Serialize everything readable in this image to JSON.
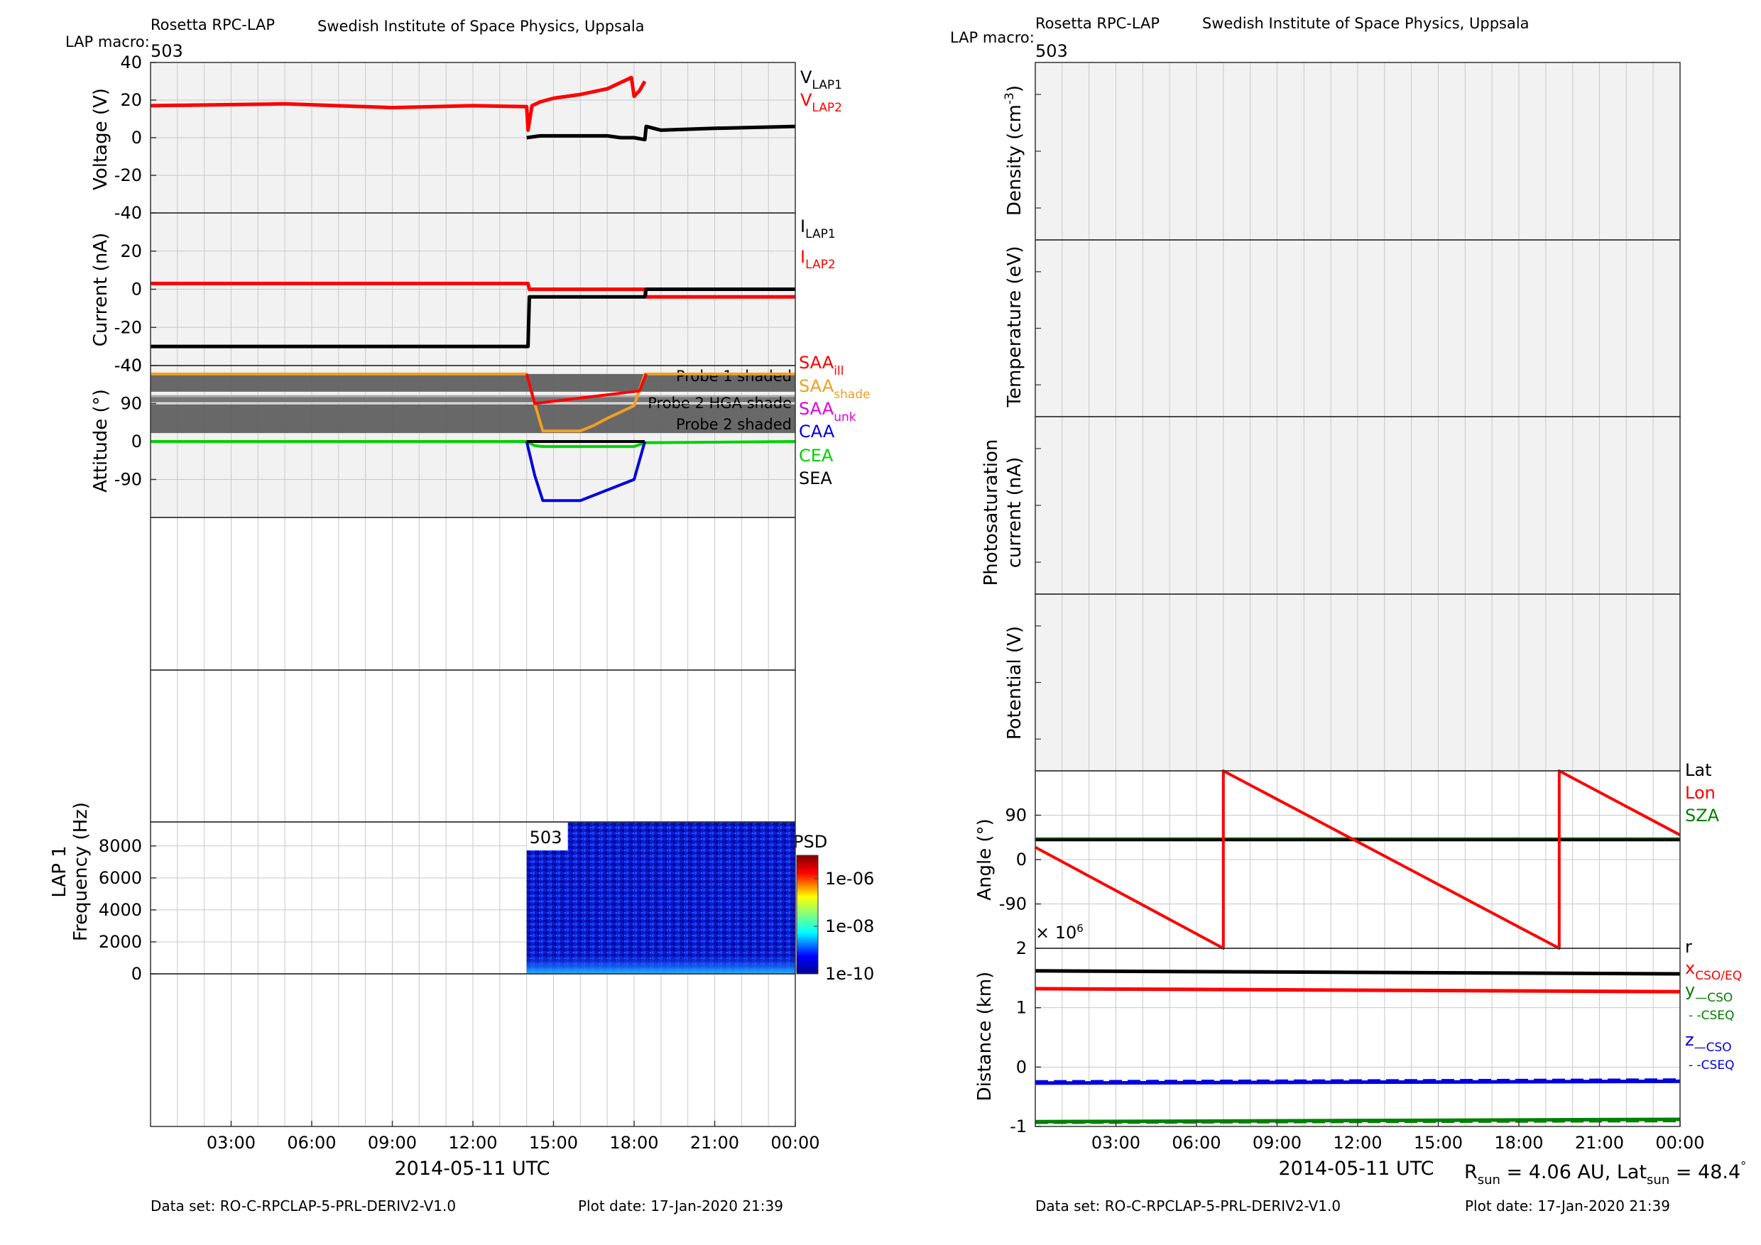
{
  "header": {
    "instrument": "Rosetta RPC-LAP",
    "institute": "Swedish Institute of Space Physics, Uppsala",
    "macro_label": "LAP macro:",
    "macro_value": "503"
  },
  "footer": {
    "dataset": "Data set: RO-C-RPCLAP-5-PRL-DERIV2-V1.0",
    "plot_date": "Plot date: 17-Jan-2020 21:39"
  },
  "x_axis": {
    "label": "2014-05-11 UTC",
    "ticks": [
      "03:00",
      "06:00",
      "09:00",
      "12:00",
      "15:00",
      "18:00",
      "21:00",
      "00:00"
    ],
    "range_hours": [
      0,
      24
    ]
  },
  "colors": {
    "red": "#ff0000",
    "black": "#000000",
    "orange": "#f0a020",
    "magenta": "#e000e0",
    "blue": "#0000e0",
    "green": "#00d000",
    "darkgreen": "#008000",
    "panel_bg": "#f2f2f2",
    "grid": "#c8c8c8"
  },
  "left": {
    "voltage": {
      "ylabel": "Voltage (V)",
      "yticks": [
        "40",
        "20",
        "0",
        "-20",
        "-40"
      ],
      "ylim": [
        -40,
        40
      ],
      "legend": [
        {
          "main": "V",
          "sub": "LAP1",
          "color": "#000000"
        },
        {
          "main": "V",
          "sub": "LAP2",
          "color": "#ff0000"
        }
      ]
    },
    "current": {
      "ylabel": "Current (nA)",
      "yticks": [
        "20",
        "0",
        "-20",
        "-40"
      ],
      "ylim": [
        -40,
        40
      ],
      "legend": [
        {
          "main": "I",
          "sub": "LAP1",
          "color": "#000000"
        },
        {
          "main": "I",
          "sub": "LAP2",
          "color": "#ff0000"
        }
      ]
    },
    "attitude": {
      "ylabel": "Attitude (°)",
      "yticks": [
        "90",
        "0",
        "-90"
      ],
      "ylim": [
        -180,
        180
      ],
      "shade_labels": [
        "Probe 1 shaded",
        "Probe 2 HGA shade",
        "Probe 2 shaded"
      ],
      "legend": [
        {
          "main": "SAA",
          "sub": "ill",
          "color": "#ff0000"
        },
        {
          "main": "SAA",
          "sub": "shade",
          "color": "#f0a020"
        },
        {
          "main": "SAA",
          "sub": "unk",
          "color": "#e000e0"
        },
        {
          "main": "CAA",
          "sub": "",
          "color": "#0000e0"
        },
        {
          "main": "CEA",
          "sub": "",
          "color": "#00d000"
        },
        {
          "main": "SEA",
          "sub": "",
          "color": "#000000"
        }
      ]
    },
    "spectrogram": {
      "ylabel1": "LAP 1",
      "ylabel2": "Frequency (Hz)",
      "yticks": [
        "8000",
        "6000",
        "4000",
        "2000",
        "0"
      ],
      "ylim": [
        0,
        9500
      ],
      "macro_box": "503",
      "colorbar_title": "PSD",
      "colorbar_ticks": [
        "1e-06",
        "1e-08",
        "1e-10"
      ]
    }
  },
  "right": {
    "density": {
      "ylabel": "Density (cm",
      "ylabel_sup": "-3",
      "ylabel_end": ")"
    },
    "temperature": {
      "ylabel": "Temperature (eV)"
    },
    "photosat": {
      "ylabel1": "Photosaturation",
      "ylabel2": "current (nA)"
    },
    "potential": {
      "ylabel": "Potential (V)"
    },
    "angle": {
      "ylabel": "Angle (°)",
      "yticks": [
        "90",
        "0",
        "-90"
      ],
      "ylim": [
        -180,
        180
      ],
      "legend": [
        {
          "main": "Lat",
          "color": "#000000"
        },
        {
          "main": "Lon",
          "color": "#ff0000"
        },
        {
          "main": "SZA",
          "color": "#008000"
        }
      ]
    },
    "distance": {
      "ylabel": "Distance (km)",
      "exponent_label": "× 10",
      "exponent_sup": "6",
      "yticks": [
        "2",
        "1",
        "0",
        "-1"
      ],
      "ylim": [
        -1,
        2
      ],
      "legend": [
        {
          "main": "r",
          "sub": "",
          "color": "#000000"
        },
        {
          "main": "x",
          "sub": "CSO/EQ",
          "color": "#ff0000"
        },
        {
          "main": "y",
          "sub": "—CSO",
          "color": "#008000"
        },
        {
          "main": "",
          "sub": "- -CSEQ",
          "color": "#008000"
        },
        {
          "main": "z",
          "sub": "—CSO",
          "color": "#0000e0"
        },
        {
          "main": "",
          "sub": "- -CSEQ",
          "color": "#0000e0"
        }
      ]
    },
    "solar_info": {
      "r_label": "R",
      "r_sub": "sun",
      "r_value": " = 4.06 AU, Lat",
      "lat_sub": "sun",
      "lat_value": " = 48.4",
      "deg": "°"
    }
  },
  "chart_data": [
    {
      "type": "line",
      "title": "",
      "ylabel": "Voltage (V)",
      "ylim": [
        -40,
        40
      ],
      "x_unit": "hours since 2014-05-11 00:00 UTC",
      "series": [
        {
          "name": "V_LAP2",
          "x": [
            0,
            5,
            9,
            12,
            14.0,
            14.05,
            14.2,
            14.5,
            15,
            16,
            17,
            17.9,
            18.0,
            18.2,
            18.4
          ],
          "y": [
            17,
            18,
            16,
            17,
            16.5,
            4,
            17,
            19,
            21,
            23,
            26,
            32,
            22,
            25,
            30
          ]
        },
        {
          "name": "V_LAP1",
          "x": [
            14.0,
            14.5,
            15,
            16,
            17,
            17.5,
            18.0,
            18.4,
            18.45,
            19,
            21,
            24
          ],
          "y": [
            0,
            1,
            1,
            1,
            1,
            0,
            0,
            -1,
            6,
            4,
            5,
            6
          ]
        }
      ]
    },
    {
      "type": "line",
      "title": "",
      "ylabel": "Current (nA)",
      "ylim": [
        -40,
        40
      ],
      "series": [
        {
          "name": "I_LAP2",
          "x": [
            0,
            14.05,
            14.1,
            18.4,
            18.45,
            24
          ],
          "y": [
            3,
            3,
            0,
            0,
            -4,
            -4
          ]
        },
        {
          "name": "I_LAP1",
          "x": [
            0,
            14.05,
            14.1,
            18.4,
            18.45,
            24
          ],
          "y": [
            -30,
            -30,
            -4,
            -4,
            0,
            0
          ]
        }
      ]
    },
    {
      "type": "line",
      "title": "",
      "ylabel": "Attitude (°)",
      "ylim": [
        -180,
        180
      ],
      "series": [
        {
          "name": "SAA_shade",
          "x": [
            0,
            14.0,
            14.3,
            14.6,
            16.0,
            16.5,
            17.0,
            17.5,
            18.0,
            18.4,
            24
          ],
          "y": [
            160,
            160,
            90,
            25,
            25,
            38,
            55,
            70,
            85,
            160,
            160
          ]
        },
        {
          "name": "SAA_ill",
          "x": [
            14.0,
            14.3,
            18.2,
            18.45
          ],
          "y": [
            160,
            90,
            120,
            160
          ]
        },
        {
          "name": "CEA",
          "x": [
            0,
            14.0,
            14.3,
            14.6,
            18.0,
            18.4,
            24
          ],
          "y": [
            0,
            0,
            -10,
            -12,
            -12,
            -3,
            0
          ]
        },
        {
          "name": "CAA",
          "x": [
            14.0,
            14.3,
            14.6,
            16.0,
            17.0,
            18.0,
            18.4
          ],
          "y": [
            0,
            -80,
            -140,
            -140,
            -115,
            -90,
            0
          ]
        },
        {
          "name": "SEA",
          "x": [
            14.0,
            18.4
          ],
          "y": [
            0,
            0
          ]
        }
      ],
      "shaded_regions_deg": [
        [
          118,
          160
        ],
        [
          93,
          110
        ],
        [
          20,
          88
        ]
      ]
    },
    {
      "type": "heatmap",
      "title": "",
      "ylabel": "Frequency (Hz)",
      "ylim": [
        0,
        9500
      ],
      "x_range_hours": [
        14.0,
        24.0
      ],
      "colorbar": "PSD",
      "colorbar_ticks": [
        "1e-06",
        "1e-08",
        "1e-10"
      ]
    },
    {
      "type": "line",
      "title": "",
      "ylabel": "Angle (°)",
      "ylim": [
        -180,
        180
      ],
      "series": [
        {
          "name": "Lon",
          "x": [
            0,
            7.0,
            7.0,
            19.5,
            19.5,
            24
          ],
          "y": [
            25,
            -180,
            180,
            -180,
            180,
            50
          ]
        },
        {
          "name": "Lat",
          "x": [
            0,
            24
          ],
          "y": [
            40,
            40
          ]
        },
        {
          "name": "SZA",
          "x": [
            0,
            24
          ],
          "y": [
            42,
            42
          ]
        }
      ]
    },
    {
      "type": "line",
      "title": "",
      "ylabel": "Distance (km)",
      "ylim": [
        -1,
        2
      ],
      "series": [
        {
          "name": "r",
          "x": [
            0,
            24
          ],
          "y": [
            1.62,
            1.57
          ]
        },
        {
          "name": "x CSO/EQ",
          "x": [
            0,
            24
          ],
          "y": [
            1.32,
            1.27
          ]
        },
        {
          "name": "z CSO",
          "x": [
            0,
            24
          ],
          "y": [
            -0.27,
            -0.24
          ]
        },
        {
          "name": "z CSEQ",
          "x": [
            0,
            24
          ],
          "y": [
            -0.25,
            -0.22
          ]
        },
        {
          "name": "y CSO",
          "x": [
            0,
            24
          ],
          "y": [
            -0.92,
            -0.88
          ]
        },
        {
          "name": "y CSEQ",
          "x": [
            0,
            24
          ],
          "y": [
            -0.93,
            -0.9
          ]
        }
      ]
    }
  ]
}
